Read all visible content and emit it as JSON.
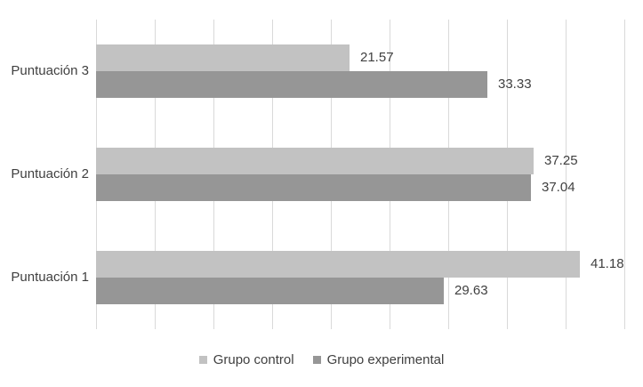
{
  "chart_data": {
    "type": "bar",
    "orientation": "horizontal",
    "categories": [
      "Puntuación 3",
      "Puntuación 2",
      "Puntuación 1"
    ],
    "series": [
      {
        "name": "Grupo control",
        "color": "#c2c2c2",
        "values": [
          21.57,
          37.25,
          41.18
        ]
      },
      {
        "name": "Grupo experimental",
        "color": "#969696",
        "values": [
          33.33,
          37.04,
          29.63
        ]
      }
    ],
    "data_labels": [
      "21.57",
      "33.33",
      "37.25",
      "37.04",
      "41.18",
      "29.63"
    ],
    "xlim": [
      0,
      45
    ],
    "grid_step": 5,
    "grid": true,
    "gridline_color": "#d9d9d9",
    "text_color": "#404040",
    "background_color": "#ffffff",
    "legend_position": "bottom",
    "legend": [
      "Grupo control",
      "Grupo experimental"
    ]
  }
}
